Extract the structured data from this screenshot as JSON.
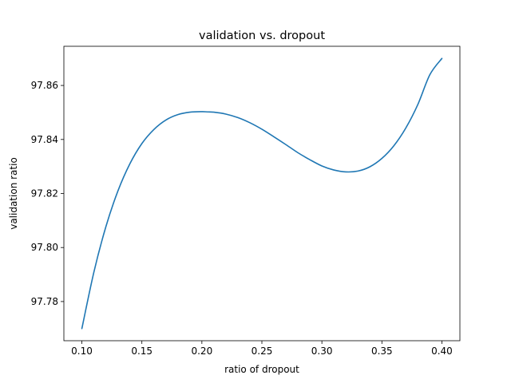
{
  "chart_data": {
    "type": "line",
    "title": "validation vs. dropout",
    "xlabel": "ratio of dropout",
    "ylabel": "validation ratio",
    "xlim": [
      0.085,
      0.415
    ],
    "ylim": [
      97.7655,
      97.8745
    ],
    "x_ticks": [
      0.1,
      0.15,
      0.2,
      0.25,
      0.3,
      0.35,
      0.4
    ],
    "x_tick_labels": [
      "0.10",
      "0.15",
      "0.20",
      "0.25",
      "0.30",
      "0.35",
      "0.40"
    ],
    "y_ticks": [
      97.78,
      97.8,
      97.82,
      97.84,
      97.86
    ],
    "y_tick_labels": [
      "97.78",
      "97.80",
      "97.82",
      "97.84",
      "97.86"
    ],
    "grid": false,
    "series": [
      {
        "color": "#1f77b4",
        "x": [
          0.1,
          0.11,
          0.12,
          0.13,
          0.14,
          0.15,
          0.16,
          0.17,
          0.18,
          0.19,
          0.2,
          0.205,
          0.21,
          0.22,
          0.23,
          0.24,
          0.25,
          0.26,
          0.27,
          0.28,
          0.29,
          0.3,
          0.31,
          0.32,
          0.33,
          0.34,
          0.35,
          0.36,
          0.37,
          0.38,
          0.39,
          0.4
        ],
        "y": [
          97.77,
          97.7909,
          97.8077,
          97.8209,
          97.831,
          97.8385,
          97.8437,
          97.8472,
          97.8492,
          97.8501,
          97.8503,
          97.8502,
          97.8501,
          97.8494,
          97.8481,
          97.8462,
          97.8438,
          97.841,
          97.8381,
          97.8351,
          97.8325,
          97.8302,
          97.8287,
          97.828,
          97.8283,
          97.8299,
          97.833,
          97.8377,
          97.8443,
          97.853,
          97.864,
          97.87
        ]
      }
    ]
  }
}
